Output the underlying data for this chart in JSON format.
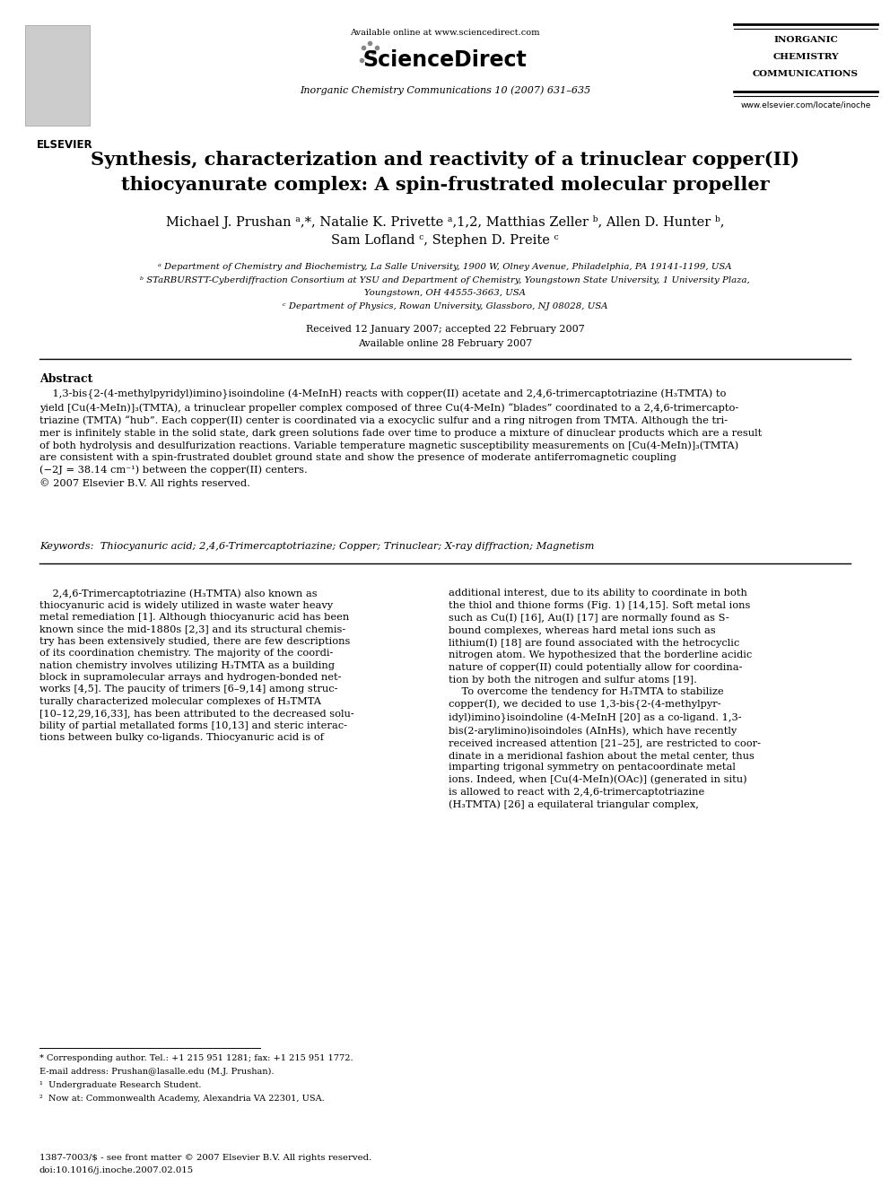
{
  "page_width": 9.92,
  "page_height": 13.23,
  "bg_color": "#ffffff",
  "header": {
    "available_online": "Available online at www.sciencedirect.com",
    "sciencedirect": "ScienceDirect",
    "journal_line": "Inorganic Chemistry Communications 10 (2007) 631–635",
    "journal_name_lines": [
      "INORGANIC",
      "CHEMISTRY",
      "COMMUNICATIONS"
    ],
    "website": "www.elsevier.com/locate/inoche"
  },
  "title": {
    "line1": "Synthesis, characterization and reactivity of a trinuclear copper(II)",
    "line2": "thiocyanurate complex: A spin-frustrated molecular propeller"
  },
  "author_line1": "Michael J. Prushan ᵃ,*, Natalie K. Privette ᵃ,1,2, Matthias Zeller ᵇ, Allen D. Hunter ᵇ,",
  "author_line2": "Sam Lofland ᶜ, Stephen D. Preite ᶜ",
  "affiliations": [
    "ᵃ Department of Chemistry and Biochemistry, La Salle University, 1900 W, Olney Avenue, Philadelphia, PA 19141-1199, USA",
    "ᵇ STaRBURSTT-Cyberdiffraction Consortium at YSU and Department of Chemistry, Youngstown State University, 1 University Plaza,",
    "Youngstown, OH 44555-3663, USA",
    "ᶜ Department of Physics, Rowan University, Glassboro, NJ 08028, USA"
  ],
  "received": "Received 12 January 2007; accepted 22 February 2007",
  "available_online_date": "Available online 28 February 2007",
  "abstract_title": "Abstract",
  "abstract_lines": [
    "    1,3-bis{2-(4-methylpyridyl)imino}isoindoline (4-MeInH) reacts with copper(II) acetate and 2,4,6-trimercaptotriazine (H₃TMTA) to",
    "yield [Cu(4-MeIn)]₃(TMTA), a trinuclear propeller complex composed of three Cu(4-MeIn) “blades” coordinated to a 2,4,6-trimercapto-",
    "triazine (TMTA) “hub”. Each copper(II) center is coordinated via a exocyclic sulfur and a ring nitrogen from TMTA. Although the tri-",
    "mer is infinitely stable in the solid state, dark green solutions fade over time to produce a mixture of dinuclear products which are a result",
    "of both hydrolysis and desulfurization reactions. Variable temperature magnetic susceptibility measurements on [Cu(4-MeIn)]₃(TMTA)",
    "are consistent with a spin-frustrated doublet ground state and show the presence of moderate antiferromagnetic coupling",
    "(−2J = 38.14 cm⁻¹) between the copper(II) centers.",
    "© 2007 Elsevier B.V. All rights reserved."
  ],
  "keywords": "Keywords:  Thiocyanuric acid; 2,4,6-Trimercaptotriazine; Copper; Trinuclear; X-ray diffraction; Magnetism",
  "body_left_lines": [
    "    2,4,6-Trimercaptotriazine (H₃TMTA) also known as",
    "thiocyanuric acid is widely utilized in waste water heavy",
    "metal remediation [1]. Although thiocyanuric acid has been",
    "known since the mid-1880s [2,3] and its structural chemis-",
    "try has been extensively studied, there are few descriptions",
    "of its coordination chemistry. The majority of the coordi-",
    "nation chemistry involves utilizing H₃TMTA as a building",
    "block in supramolecular arrays and hydrogen-bonded net-",
    "works [4,5]. The paucity of trimers [6–9,14] among struc-",
    "turally characterized molecular complexes of H₃TMTA",
    "[10–12,29,16,33], has been attributed to the decreased solu-",
    "bility of partial metallated forms [10,13] and steric interac-",
    "tions between bulky co-ligands. Thiocyanuric acid is of"
  ],
  "body_right_lines": [
    "additional interest, due to its ability to coordinate in both",
    "the thiol and thione forms (Fig. 1) [14,15]. Soft metal ions",
    "such as Cu(I) [16], Au(I) [17] are normally found as S-",
    "bound complexes, whereas hard metal ions such as",
    "lithium(I) [18] are found associated with the hetrocyclic",
    "nitrogen atom. We hypothesized that the borderline acidic",
    "nature of copper(II) could potentially allow for coordina-",
    "tion by both the nitrogen and sulfur atoms [19].",
    "    To overcome the tendency for H₃TMTA to stabilize",
    "copper(I), we decided to use 1,3-bis{2-(4-methylpyr-",
    "idyl)imino}isoindoline (4-MeInH [20] as a co-ligand. 1,3-",
    "bis(2-arylimino)isoindoles (AInHs), which have recently",
    "received increased attention [21–25], are restricted to coor-",
    "dinate in a meridional fashion about the metal center, thus",
    "imparting trigonal symmetry on pentacoordinate metal",
    "ions. Indeed, when [Cu(4-MeIn)(OAc)] (generated in situ)",
    "is allowed to react with 2,4,6-trimercaptotriazine",
    "(H₃TMTA) [26] a equilateral triangular complex,"
  ],
  "footnotes": [
    "* Corresponding author. Tel.: +1 215 951 1281; fax: +1 215 951 1772.",
    "E-mail address: Prushan@lasalle.edu (M.J. Prushan).",
    "¹  Undergraduate Research Student.",
    "²  Now at: Commonwealth Academy, Alexandria VA 22301, USA."
  ],
  "footer_line1": "1387-7003/$ - see front matter © 2007 Elsevier B.V. All rights reserved.",
  "footer_line2": "doi:10.1016/j.inoche.2007.02.015"
}
